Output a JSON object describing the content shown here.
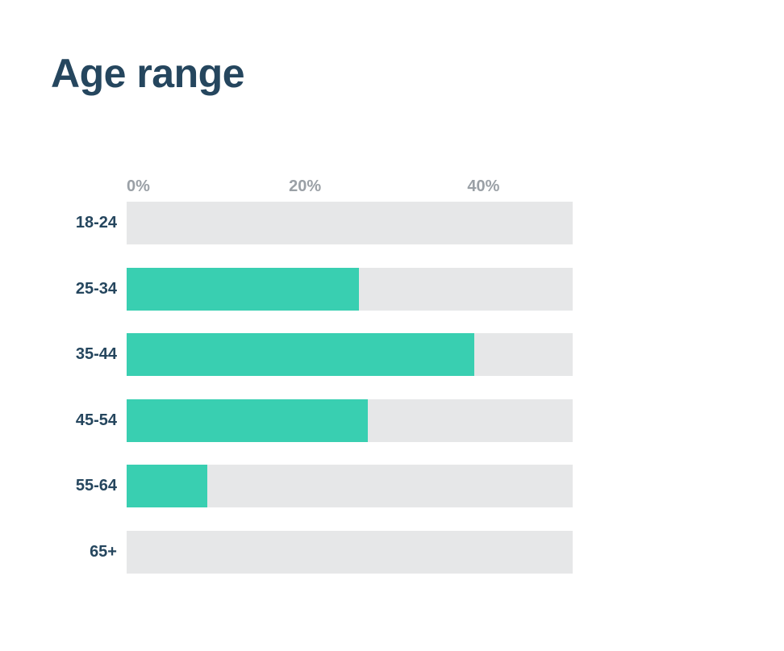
{
  "title": "Age range",
  "chart_data": {
    "type": "bar",
    "orientation": "horizontal",
    "title": "Age range",
    "categories": [
      "18-24",
      "25-34",
      "35-44",
      "45-54",
      "55-64",
      "65+"
    ],
    "values": [
      0,
      26,
      39,
      27,
      9,
      0
    ],
    "unit": "%",
    "xlabel": "",
    "ylabel": "",
    "xlim": [
      0,
      50
    ],
    "x_ticks": [
      "0%",
      "20%",
      "40%"
    ],
    "x_tick_values": [
      0,
      20,
      40
    ],
    "grid": false,
    "legend": false,
    "colors": {
      "bar": "#39cfb1",
      "track": "#e6e7e8",
      "title": "#25465e",
      "category_label": "#25465e",
      "tick_label": "#9aa0a6",
      "background": "#ffffff"
    }
  }
}
